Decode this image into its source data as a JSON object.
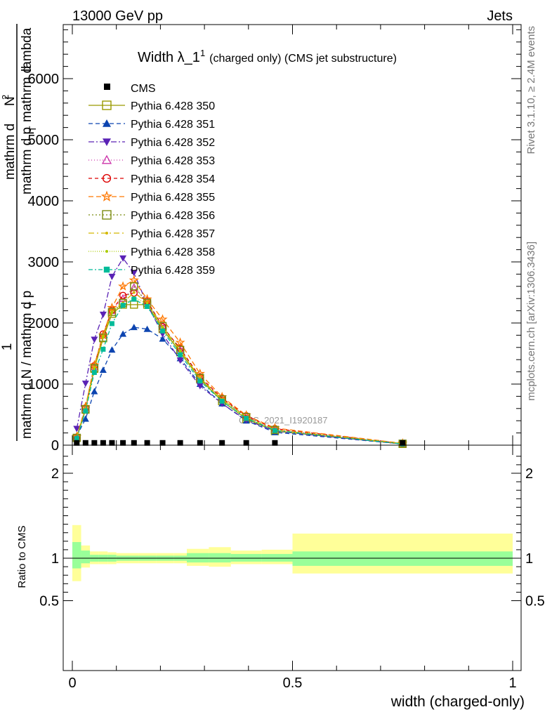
{
  "header": {
    "left": "13000 GeV pp",
    "right": "Jets"
  },
  "side": {
    "rivet": "Rivet 3.1.10, ≥ 2.4M events",
    "mcplots": "mcplots.cern.ch [arXiv:1306.3436]"
  },
  "chart_data": {
    "type": "line",
    "title_main": "Width λ_1",
    "title_sup": "1",
    "title_tail": "(charged only) (CMS jet substructure)",
    "watermark": "CMS_2021_I1920187",
    "ylabel_num": "1",
    "ylabel_den": "mathrm d N / mathrm d p",
    "ylabel_num2": "mathrm d",
    "ylabel_num2b": "N",
    "ylabel_num2c": "mathrm d p",
    "ylabel_num2d": "mathrm d",
    "ylabel_num2e": "lambda",
    "ylabel_T": "T",
    "ylabel_2": "2",
    "ratio_ylabel": "Ratio to CMS",
    "xlabel": "width (charged-only)",
    "xlim": [
      -0.02,
      1.02
    ],
    "ylim_main": [
      0,
      6900
    ],
    "ylim_ratio": [
      0.38,
      2.3
    ],
    "main_y_ticks": [
      0,
      1000,
      2000,
      3000,
      4000,
      5000,
      6000
    ],
    "main_y_tick_labels": [
      "0",
      "1000",
      "2000",
      "3000",
      "4000",
      "5000",
      "6000"
    ],
    "ratio_y_ticks": [
      0.5,
      1,
      2
    ],
    "ratio_y_tick_labels": [
      "0.5",
      "1",
      "2"
    ],
    "x_ticks": [
      0,
      0.5,
      1
    ],
    "x_tick_labels": [
      "0",
      "0.5",
      "1"
    ],
    "x": [
      0.01,
      0.03,
      0.05,
      0.07,
      0.09,
      0.115,
      0.14,
      0.17,
      0.205,
      0.245,
      0.29,
      0.34,
      0.395,
      0.46,
      0.75
    ],
    "x_edges": [
      0,
      0.02,
      0.04,
      0.06,
      0.08,
      0.1,
      0.13,
      0.15,
      0.19,
      0.23,
      0.26,
      0.31,
      0.36,
      0.43,
      0.5,
      1.0
    ],
    "data": {
      "name": "CMS",
      "values": [
        14,
        14,
        14,
        14,
        14,
        14,
        14,
        14,
        14,
        14,
        14,
        14,
        14,
        14,
        14
      ]
    },
    "ratio_band_inner": [
      [
        0.88,
        1.19
      ],
      [
        0.94,
        1.09
      ],
      [
        0.96,
        1.04
      ],
      [
        0.96,
        1.04
      ],
      [
        0.96,
        1.04
      ],
      [
        0.97,
        1.03
      ],
      [
        0.97,
        1.03
      ],
      [
        0.97,
        1.03
      ],
      [
        0.97,
        1.03
      ],
      [
        0.97,
        1.03
      ],
      [
        0.95,
        1.06
      ],
      [
        0.95,
        1.06
      ],
      [
        0.96,
        1.05
      ],
      [
        0.96,
        1.05
      ],
      [
        0.91,
        1.08
      ]
    ],
    "ratio_band_outer": [
      [
        0.73,
        1.39
      ],
      [
        0.89,
        1.15
      ],
      [
        0.93,
        1.08
      ],
      [
        0.93,
        1.08
      ],
      [
        0.93,
        1.07
      ],
      [
        0.94,
        1.06
      ],
      [
        0.94,
        1.06
      ],
      [
        0.94,
        1.06
      ],
      [
        0.94,
        1.06
      ],
      [
        0.94,
        1.06
      ],
      [
        0.91,
        1.11
      ],
      [
        0.9,
        1.13
      ],
      [
        0.93,
        1.09
      ],
      [
        0.93,
        1.1
      ],
      [
        0.82,
        1.29
      ]
    ],
    "series": [
      {
        "name": "Pythia 6.428 350",
        "color": "#999900",
        "dash": "",
        "marker": "square-open",
        "values": [
          120,
          580,
          1250,
          1750,
          2150,
          2300,
          2300,
          2300,
          1900,
          1520,
          1080,
          720,
          430,
          230,
          20
        ]
      },
      {
        "name": "Pythia 6.428 351",
        "color": "#0c44b0",
        "dash": "6,4",
        "marker": "triangle-up",
        "values": [
          150,
          430,
          880,
          1230,
          1560,
          1820,
          1930,
          1900,
          1740,
          1420,
          1000,
          680,
          400,
          210,
          20
        ]
      },
      {
        "name": "Pythia 6.428 352",
        "color": "#5a22b5",
        "dash": "8,3,2,3",
        "marker": "triangle-down",
        "values": [
          270,
          1010,
          1730,
          2140,
          2760,
          3060,
          2820,
          2300,
          1820,
          1390,
          970,
          680,
          410,
          230,
          20
        ]
      },
      {
        "name": "Pythia 6.428 353",
        "color": "#cc33aa",
        "dash": "1,3",
        "marker": "triangle-open",
        "values": [
          130,
          600,
          1280,
          1800,
          2200,
          2400,
          2580,
          2350,
          1950,
          1560,
          1100,
          760,
          470,
          260,
          25
        ]
      },
      {
        "name": "Pythia 6.428 354",
        "color": "#dd0000",
        "dash": "5,4",
        "marker": "circle-open",
        "values": [
          130,
          610,
          1300,
          1820,
          2210,
          2450,
          2490,
          2360,
          1940,
          1580,
          1120,
          770,
          480,
          270,
          25
        ]
      },
      {
        "name": "Pythia 6.428 355",
        "color": "#ff7700",
        "dash": "7,4",
        "marker": "star",
        "values": [
          140,
          630,
          1310,
          1800,
          2250,
          2600,
          2700,
          2390,
          2060,
          1680,
          1170,
          790,
          490,
          280,
          30
        ]
      },
      {
        "name": "Pythia 6.428 356",
        "color": "#7a8c10",
        "dash": "2,3",
        "marker": "square-open",
        "values": [
          120,
          590,
          1260,
          1760,
          2180,
          2330,
          2600,
          2330,
          1950,
          1560,
          1100,
          750,
          460,
          250,
          25
        ]
      },
      {
        "name": "Pythia 6.428 357",
        "color": "#d4b800",
        "dash": "8,4,2,4",
        "marker": "dot",
        "values": [
          125,
          600,
          1270,
          1780,
          2190,
          2330,
          2500,
          2330,
          1930,
          1550,
          1100,
          750,
          460,
          250,
          25
        ]
      },
      {
        "name": "Pythia 6.428 358",
        "color": "#aacc00",
        "dash": "1,2",
        "marker": "dot",
        "values": [
          120,
          590,
          1250,
          1770,
          2170,
          2300,
          2420,
          2310,
          1920,
          1540,
          1090,
          740,
          450,
          245,
          22
        ]
      },
      {
        "name": "Pythia 6.428 359",
        "color": "#00bb99",
        "dash": "6,3,2,3",
        "marker": "square",
        "values": [
          110,
          560,
          1190,
          1570,
          1990,
          2290,
          2390,
          2270,
          1870,
          1480,
          1050,
          720,
          440,
          240,
          20
        ]
      }
    ]
  }
}
